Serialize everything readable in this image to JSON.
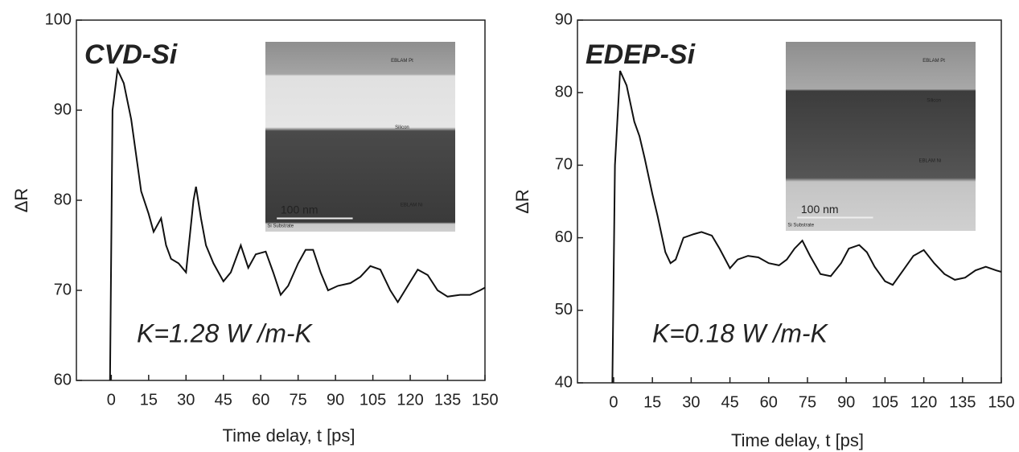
{
  "chart_data": [
    {
      "type": "line",
      "title": "CVD-Si",
      "annotation": "K=1.28 W /m-K",
      "xlabel": "Time delay, t [ps]",
      "ylabel": "ΔR",
      "xlim": [
        -14,
        150
      ],
      "ylim": [
        60,
        100
      ],
      "xticks": [
        0,
        15,
        30,
        45,
        60,
        75,
        90,
        105,
        120,
        135,
        150
      ],
      "yticks": [
        60,
        70,
        80,
        90,
        100
      ],
      "inset_labels": [
        "EBLAM Pt",
        "Silicon",
        "EBLAM Ni",
        "100 nm",
        "Si Substrate"
      ],
      "x": [
        -0.5,
        0.5,
        2.5,
        5,
        8,
        10,
        12,
        15,
        17,
        20,
        22,
        24,
        27,
        30,
        33,
        34,
        36,
        38,
        41,
        45,
        48,
        52,
        55,
        58,
        62,
        65,
        68,
        71,
        75,
        78,
        81,
        84,
        87,
        91,
        96,
        100,
        104,
        108,
        112,
        115,
        119,
        123,
        127,
        131,
        135,
        140,
        144,
        148,
        150
      ],
      "series": [
        {
          "color": "#111111",
          "values": [
            60,
            90,
            94.5,
            93,
            89,
            85,
            81,
            78.5,
            76.5,
            78,
            75,
            73.5,
            73,
            72,
            80,
            81.5,
            78,
            75,
            73,
            71,
            72,
            75,
            72.5,
            74,
            74.3,
            72,
            69.5,
            70.5,
            73,
            74.5,
            74.5,
            72,
            70,
            70.5,
            70.8,
            71.5,
            72.7,
            72.3,
            70,
            68.7,
            70.5,
            72.3,
            71.7,
            70,
            69.3,
            69.5,
            69.5,
            70,
            70.3
          ]
        }
      ]
    },
    {
      "type": "line",
      "title": "EDEP-Si",
      "annotation": "K=0.18 W /m-K",
      "xlabel": "Time delay, t [ps]",
      "ylabel": "ΔR",
      "xlim": [
        -14,
        150
      ],
      "ylim": [
        40,
        90
      ],
      "xticks": [
        0,
        15,
        30,
        45,
        60,
        75,
        90,
        105,
        120,
        135,
        150
      ],
      "yticks": [
        40,
        50,
        60,
        70,
        80,
        90
      ],
      "inset_labels": [
        "EBLAM Pt",
        "Silicon",
        "EBLAM Ni",
        "100 nm",
        "Si Substrate"
      ],
      "x": [
        -0.5,
        0.5,
        2.5,
        5,
        8,
        10,
        12,
        15,
        17,
        20,
        22,
        24,
        27,
        31,
        34,
        38,
        41,
        45,
        48,
        52,
        56,
        60,
        64,
        67,
        70,
        73,
        76,
        80,
        84,
        88,
        91,
        95,
        98,
        101,
        105,
        108,
        112,
        116,
        120,
        124,
        128,
        132,
        136,
        140,
        144,
        148,
        150
      ],
      "series": [
        {
          "color": "#111111",
          "values": [
            40,
            70,
            83,
            81,
            76,
            74,
            71,
            66,
            63,
            58,
            56.5,
            57,
            60,
            60.5,
            60.8,
            60.3,
            58.5,
            55.8,
            57,
            57.5,
            57.3,
            56.5,
            56.2,
            57,
            58.5,
            59.6,
            57.5,
            55,
            54.7,
            56.5,
            58.5,
            59,
            58,
            56,
            54,
            53.5,
            55.5,
            57.5,
            58.3,
            56.5,
            55,
            54.2,
            54.5,
            55.5,
            56,
            55.5,
            55.3
          ]
        }
      ]
    }
  ]
}
